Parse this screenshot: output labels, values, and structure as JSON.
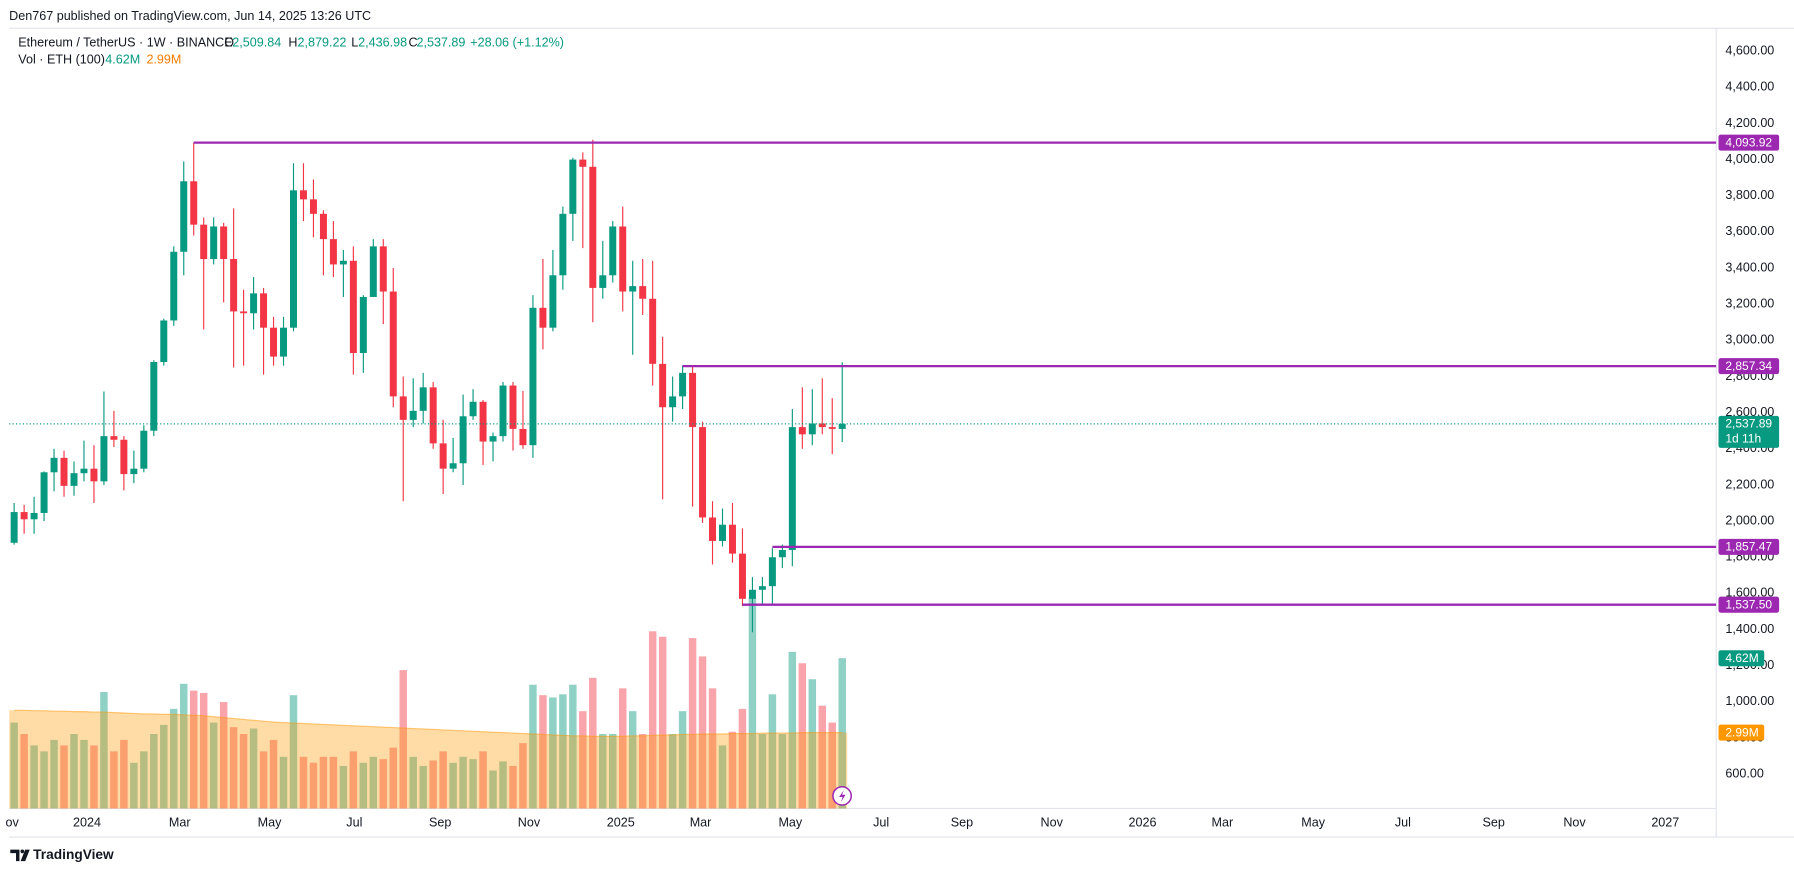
{
  "header": "Den767 published on TradingView.com, Jun 14, 2025 13:26 UTC",
  "footer": "TradingView",
  "chart_data": {
    "type": "candlestick",
    "legend": {
      "symbol": "Ethereum / TetherUS · 1W · BINANCE",
      "fields": [
        {
          "key": "O",
          "value": "2,509.84"
        },
        {
          "key": "H",
          "value": "2,879.22"
        },
        {
          "key": "L",
          "value": "2,436.98"
        },
        {
          "key": "C",
          "value": "2,537.89"
        }
      ],
      "change": "+28.06 (+1.12%)"
    },
    "x": [
      0,
      1,
      2,
      3,
      4,
      5,
      6,
      7,
      8,
      9,
      10,
      11,
      12,
      13,
      14,
      15,
      16,
      17,
      18,
      19,
      20,
      21,
      22,
      23,
      24,
      25,
      26,
      27,
      28,
      29,
      30,
      31,
      32,
      33,
      34,
      35,
      36,
      37,
      38,
      39,
      40,
      41,
      42,
      43,
      44,
      45,
      46,
      47,
      48,
      49,
      50,
      51,
      52,
      53,
      54,
      55,
      56,
      57,
      58,
      59,
      60,
      61,
      62,
      63,
      64,
      65,
      66,
      67,
      68,
      69,
      70,
      71,
      72,
      73,
      74,
      75,
      76,
      77,
      78,
      79,
      80,
      81,
      82,
      83
    ],
    "open": [
      1880,
      2050,
      2010,
      2045,
      2270,
      2350,
      2195,
      2265,
      2290,
      2220,
      2470,
      2450,
      2260,
      2290,
      2500,
      2880,
      3110,
      3490,
      3880,
      3640,
      3450,
      3630,
      3450,
      3160,
      3150,
      3260,
      3070,
      2910,
      3070,
      3830,
      3780,
      3700,
      3560,
      3420,
      3440,
      2930,
      3240,
      3520,
      3270,
      2690,
      2560,
      2610,
      2740,
      2430,
      2290,
      2320,
      2580,
      2660,
      2440,
      2470,
      2750,
      2510,
      2420,
      3180,
      3070,
      3360,
      3700,
      4000,
      3960,
      3290,
      3360,
      3630,
      3270,
      3300,
      3230,
      2870,
      2630,
      2690,
      2820,
      2520,
      2020,
      1890,
      1980,
      1820,
      1570,
      1620,
      1640,
      1800,
      1840,
      2520,
      2480,
      2540,
      2520,
      2509.84
    ],
    "high": [
      2100,
      2090,
      2135,
      2275,
      2400,
      2390,
      2330,
      2445,
      2420,
      2717,
      2610,
      2470,
      2390,
      2530,
      2890,
      3120,
      3520,
      3990,
      4094,
      3680,
      3680,
      3650,
      3730,
      3280,
      3350,
      3290,
      3130,
      3130,
      3980,
      3980,
      3890,
      3720,
      3660,
      3500,
      3520,
      3250,
      3560,
      3560,
      3400,
      2800,
      2790,
      2820,
      2770,
      2560,
      2460,
      2700,
      2730,
      2670,
      2490,
      2770,
      2770,
      2720,
      3250,
      3450,
      3500,
      3740,
      4010,
      4040,
      4110,
      3550,
      3660,
      3740,
      3440,
      3450,
      3440,
      3020,
      2800,
      2860,
      2860,
      2550,
      2110,
      2070,
      2100,
      1960,
      1690,
      1690,
      1850,
      1870,
      2620,
      2740,
      2730,
      2790,
      2680,
      2879.22
    ],
    "low": [
      1870,
      1930,
      1930,
      2000,
      2165,
      2135,
      2140,
      2220,
      2100,
      2200,
      2410,
      2170,
      2210,
      2270,
      2470,
      2860,
      3080,
      3360,
      3580,
      3060,
      3420,
      3210,
      2850,
      2860,
      3060,
      2810,
      2860,
      2860,
      3050,
      3660,
      3570,
      3360,
      3350,
      3240,
      2810,
      2820,
      3240,
      3090,
      2630,
      2110,
      2520,
      2540,
      2400,
      2150,
      2270,
      2200,
      2560,
      2310,
      2330,
      2440,
      2390,
      2400,
      2350,
      2950,
      3050,
      3280,
      3550,
      3510,
      3100,
      3230,
      3320,
      3160,
      2920,
      3140,
      2750,
      2120,
      2550,
      2620,
      2080,
      1990,
      1760,
      1860,
      1770,
      1530,
      1385,
      1540,
      1540,
      1740,
      1750,
      2400,
      2420,
      2480,
      2370,
      2436.98
    ],
    "close": [
      2050,
      2010,
      2045,
      2270,
      2350,
      2195,
      2265,
      2290,
      2220,
      2470,
      2450,
      2260,
      2290,
      2500,
      2880,
      3110,
      3490,
      3880,
      3640,
      3450,
      3630,
      3450,
      3160,
      3150,
      3260,
      3070,
      2910,
      3070,
      3830,
      3780,
      3700,
      3560,
      3420,
      3440,
      2930,
      3240,
      3520,
      3270,
      2690,
      2560,
      2610,
      2740,
      2430,
      2290,
      2320,
      2580,
      2660,
      2440,
      2470,
      2750,
      2510,
      2420,
      3180,
      3070,
      3360,
      3700,
      4000,
      3960,
      3290,
      3360,
      3630,
      3270,
      3300,
      3230,
      2870,
      2630,
      2690,
      2820,
      2520,
      2020,
      1890,
      1980,
      1820,
      1570,
      1620,
      1640,
      1800,
      1840,
      2520,
      2480,
      2540,
      2520,
      2510,
      2537.89
    ],
    "volume": {
      "name": "Vol · ETH (100)",
      "values": [
        3.21,
        2.96,
        2.71,
        2.58,
        2.83,
        2.71,
        2.96,
        2.83,
        2.71,
        3.88,
        2.58,
        2.83,
        2.33,
        2.58,
        2.96,
        3.16,
        3.51,
        4.06,
        3.91,
        3.86,
        3.21,
        3.66,
        3.11,
        2.96,
        3.08,
        2.58,
        2.83,
        2.46,
        3.81,
        2.46,
        2.33,
        2.46,
        2.46,
        2.26,
        2.58,
        2.33,
        2.46,
        2.41,
        2.66,
        4.36,
        2.46,
        2.26,
        2.38,
        2.58,
        2.33,
        2.46,
        2.41,
        2.58,
        2.16,
        2.36,
        2.26,
        2.76,
        4.04,
        3.81,
        3.76,
        3.83,
        4.04,
        3.46,
        4.19,
        2.96,
        2.96,
        3.96,
        3.46,
        2.96,
        5.21,
        5.09,
        2.96,
        3.46,
        5.06,
        4.66,
        3.96,
        2.71,
        3.01,
        3.51,
        5.96,
        2.96,
        3.83,
        2.96,
        4.76,
        4.51,
        4.16,
        3.58,
        3.21,
        4.62
      ],
      "value_label": "4.62M",
      "ma": [
        3.48,
        3.48,
        3.47,
        3.47,
        3.46,
        3.46,
        3.45,
        3.45,
        3.44,
        3.44,
        3.43,
        3.42,
        3.41,
        3.4,
        3.4,
        3.39,
        3.39,
        3.38,
        3.37,
        3.36,
        3.34,
        3.32,
        3.3,
        3.28,
        3.26,
        3.24,
        3.22,
        3.21,
        3.2,
        3.19,
        3.18,
        3.17,
        3.16,
        3.15,
        3.14,
        3.13,
        3.12,
        3.11,
        3.1,
        3.09,
        3.08,
        3.07,
        3.06,
        3.05,
        3.04,
        3.03,
        3.02,
        3.01,
        3.0,
        2.99,
        2.98,
        2.97,
        2.96,
        2.95,
        2.94,
        2.93,
        2.92,
        2.92,
        2.91,
        2.91,
        2.91,
        2.91,
        2.92,
        2.92,
        2.93,
        2.94,
        2.94,
        2.95,
        2.95,
        2.96,
        2.96,
        2.96,
        2.97,
        2.97,
        2.97,
        2.98,
        2.98,
        2.98,
        2.98,
        2.99,
        2.99,
        2.99,
        2.99,
        2.99
      ],
      "ma_label": "2.99M"
    },
    "levels": [
      {
        "value": 4093.92,
        "label": "4,093.92",
        "x_start": 18
      },
      {
        "value": 2857.34,
        "label": "2,857.34",
        "x_start": 67
      },
      {
        "value": 1857.47,
        "label": "1,857.47",
        "x_start": 76
      },
      {
        "value": 1537.5,
        "label": "1,537.50",
        "x_start": 73
      }
    ],
    "last_price": {
      "value": 2537.89,
      "label": "2,537.89",
      "countdown": "1d 11h"
    },
    "xlim": [
      -0.5,
      170.6
    ],
    "xticks": [
      {
        "value": -0.2,
        "label": "ov"
      },
      {
        "value": 7.3,
        "label": "2024"
      },
      {
        "value": 16.6,
        "label": "Mar"
      },
      {
        "value": 25.6,
        "label": "May"
      },
      {
        "value": 34.1,
        "label": "Jul"
      },
      {
        "value": 42.7,
        "label": "Sep"
      },
      {
        "value": 51.6,
        "label": "Nov"
      },
      {
        "value": 60.8,
        "label": "2025"
      },
      {
        "value": 68.8,
        "label": "Mar"
      },
      {
        "value": 77.8,
        "label": "May"
      },
      {
        "value": 86.9,
        "label": "Jul"
      },
      {
        "value": 95.0,
        "label": "Sep"
      },
      {
        "value": 104.0,
        "label": "Nov"
      },
      {
        "value": 113.1,
        "label": "2026"
      },
      {
        "value": 121.1,
        "label": "Mar"
      },
      {
        "value": 130.2,
        "label": "May"
      },
      {
        "value": 139.2,
        "label": "Jul"
      },
      {
        "value": 148.3,
        "label": "Sep"
      },
      {
        "value": 156.4,
        "label": "Nov"
      },
      {
        "value": 165.5,
        "label": "2027"
      }
    ],
    "ylim": [
      410,
      4727
    ],
    "yticks": [
      {
        "value": 600,
        "label": "600.00"
      },
      {
        "value": 800,
        "label": "800.00"
      },
      {
        "value": 1000,
        "label": "1,000.00"
      },
      {
        "value": 1200,
        "label": "1,200.00"
      },
      {
        "value": 1400,
        "label": "1,400.00"
      },
      {
        "value": 1600,
        "label": "1,600.00"
      },
      {
        "value": 1800,
        "label": "1,800.00"
      },
      {
        "value": 2000,
        "label": "2,000.00"
      },
      {
        "value": 2200,
        "label": "2,200.00"
      },
      {
        "value": 2400,
        "label": "2,400.00"
      },
      {
        "value": 2600,
        "label": "2,600.00"
      },
      {
        "value": 2800,
        "label": "2,800.00"
      },
      {
        "value": 3000,
        "label": "3,000.00"
      },
      {
        "value": 3200,
        "label": "3,200.00"
      },
      {
        "value": 3400,
        "label": "3,400.00"
      },
      {
        "value": 3600,
        "label": "3,600.00"
      },
      {
        "value": 3800,
        "label": "3,800.00"
      },
      {
        "value": 4000,
        "label": "4,000.00"
      },
      {
        "value": 4200,
        "label": "4,200.00"
      },
      {
        "value": 4400,
        "label": "4,400.00"
      },
      {
        "value": 4600,
        "label": "4,600.00"
      }
    ],
    "log_scale": false,
    "grid": true,
    "up_color": "#089981",
    "down_color": "#f23645",
    "volume_up_color": "rgba(8,153,129,0.45)",
    "volume_down_color": "rgba(242,54,69,0.45)",
    "volume_ma_color": "#ff9800",
    "level_color": "#9c27b0"
  }
}
